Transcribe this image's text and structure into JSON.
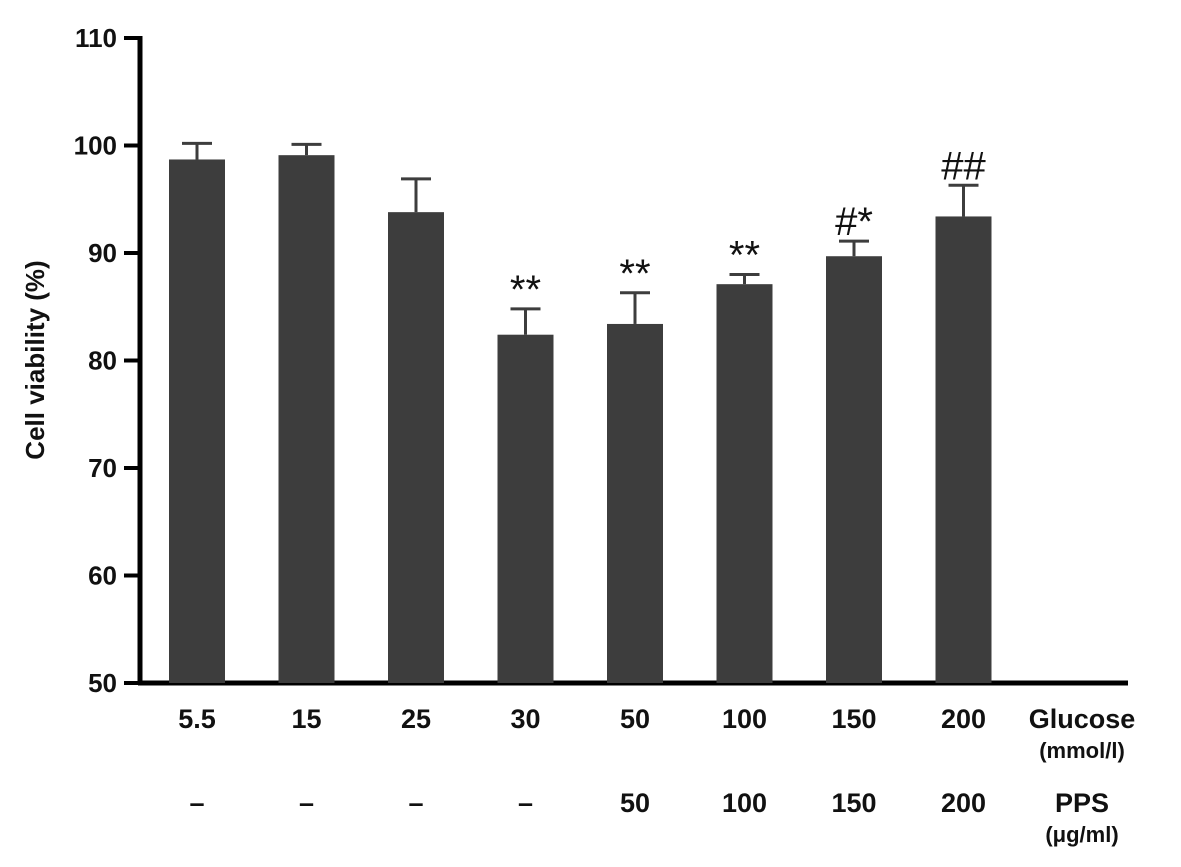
{
  "chart_data": {
    "type": "bar",
    "ylabel": "Cell viability (%)",
    "ylim": [
      50,
      110
    ],
    "yticks": [
      50,
      60,
      70,
      80,
      90,
      100,
      110
    ],
    "grid": false,
    "bar_color": "#3d3d3d",
    "categories": [
      "5.5",
      "15",
      "25",
      "30",
      "50",
      "100",
      "150",
      "200"
    ],
    "values": [
      98.7,
      99.1,
      93.8,
      82.4,
      83.4,
      87.1,
      89.7,
      93.4
    ],
    "errors": [
      1.5,
      1.0,
      3.1,
      2.4,
      2.9,
      0.9,
      1.4,
      2.9
    ],
    "significance": [
      "",
      "",
      "",
      "**",
      "**",
      "**",
      "#*",
      "##"
    ],
    "x_rows": [
      {
        "title": "Glucose",
        "unit": "(mmol/l)",
        "labels": [
          "5.5",
          "15",
          "25",
          "30",
          "50",
          "100",
          "150",
          "200"
        ]
      },
      {
        "title": "PPS",
        "unit": "(μg/ml)",
        "labels": [
          "–",
          "–",
          "–",
          "–",
          "50",
          "100",
          "150",
          "200"
        ]
      }
    ]
  }
}
